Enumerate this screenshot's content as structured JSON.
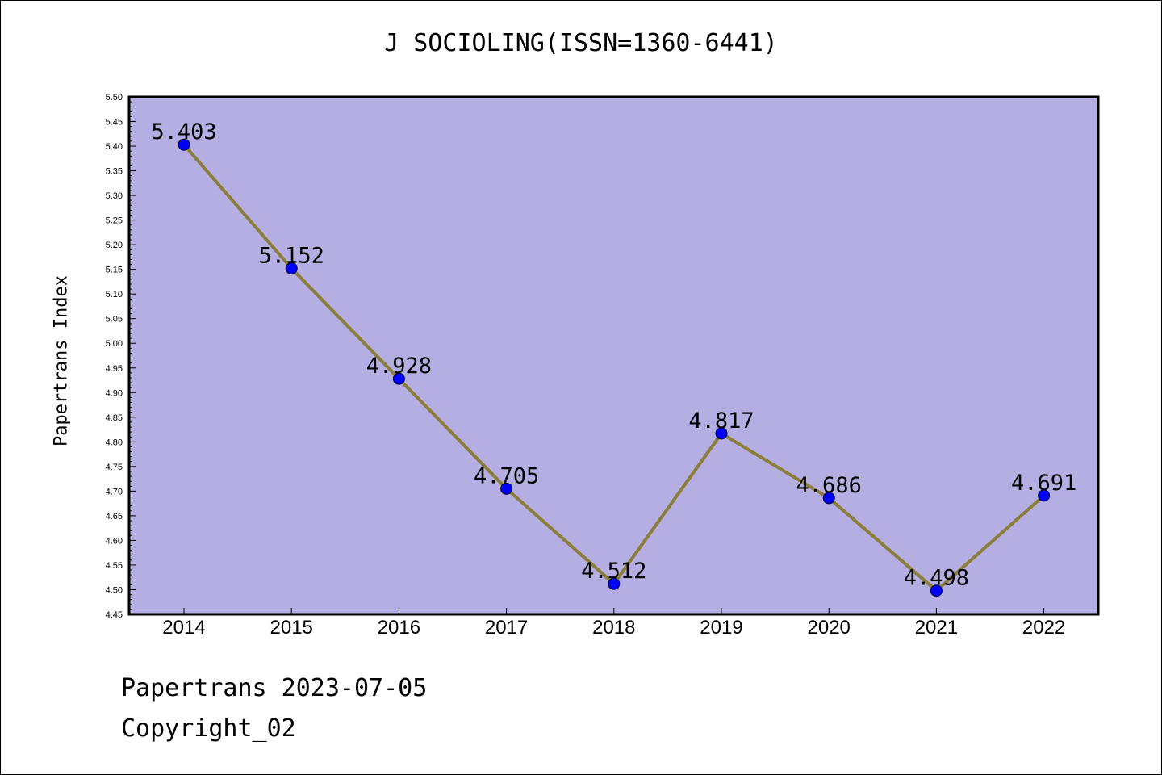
{
  "chart_data": {
    "type": "line",
    "title": "J SOCIOLING(ISSN=1360-6441)",
    "ylabel": "Papertrans Index",
    "xlabel": "",
    "x": [
      "2014",
      "2015",
      "2016",
      "2017",
      "2018",
      "2019",
      "2020",
      "2021",
      "2022"
    ],
    "values": [
      5.403,
      5.152,
      4.928,
      4.705,
      4.512,
      4.817,
      4.686,
      4.498,
      4.691
    ],
    "data_labels": [
      "5.403",
      "5.152",
      "4.928",
      "4.705",
      "4.512",
      "4.817",
      "4.686",
      "4.498",
      "4.691"
    ],
    "ylim": [
      4.45,
      5.5
    ],
    "yticks": [
      "4.45",
      "4.50",
      "4.55",
      "4.60",
      "4.65",
      "4.70",
      "4.75",
      "4.80",
      "4.85",
      "4.90",
      "4.95",
      "5.00",
      "5.05",
      "5.10",
      "5.15",
      "5.20",
      "5.25",
      "5.30",
      "5.35",
      "5.40",
      "5.45",
      "5.50"
    ],
    "grid": false,
    "colors": {
      "plot_background": "#b5aee2",
      "line": "#8b7d3a",
      "marker": "#0000ff"
    }
  },
  "footer": {
    "line1": "Papertrans 2023-07-05",
    "line2": "Copyright_02"
  }
}
